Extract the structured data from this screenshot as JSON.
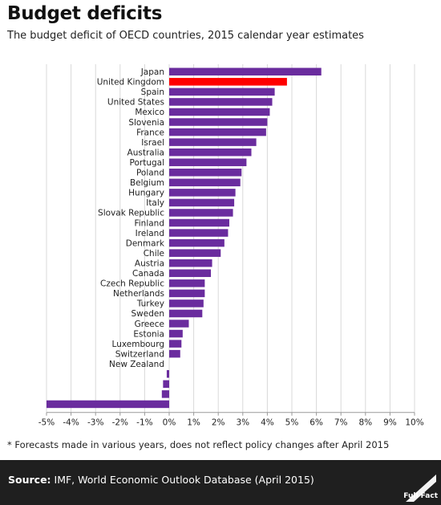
{
  "header": {
    "title": "Budget deficits",
    "subtitle": "The budget deficit of OECD countries, 2015 calendar year estimates"
  },
  "footnote": "* Forecasts made in various years, does not reflect policy changes after April 2015",
  "footer": {
    "source_label": "Source:",
    "source_text": " IMF, World Economic Outlook Database (April 2015)",
    "logo_text": "Full Fact"
  },
  "colors": {
    "bar": "#6a2c9e",
    "highlight": "#ff0000",
    "grid": "#d9d9d9",
    "footer_bg": "#1f1f1f"
  },
  "chart_data": {
    "type": "bar",
    "orientation": "horizontal",
    "categories": [
      "Japan",
      "United Kingdom",
      "Spain",
      "United States",
      "Mexico",
      "Slovenia",
      "France",
      "Israel",
      "Australia",
      "Portugal",
      "Poland",
      "Belgium",
      "Hungary",
      "Italy",
      "Slovak Republic",
      "Finland",
      "Ireland",
      "Denmark",
      "Chile",
      "Austria",
      "Canada",
      "Czech Republic",
      "Netherlands",
      "Turkey",
      "Sweden",
      "Greece",
      "Estonia",
      "Luxembourg",
      "Switzerland",
      "New Zealand",
      "",
      "",
      "",
      ""
    ],
    "values": [
      6.2,
      4.8,
      4.3,
      4.2,
      4.1,
      4.0,
      3.95,
      3.55,
      3.35,
      3.15,
      2.95,
      2.9,
      2.7,
      2.65,
      2.6,
      2.45,
      2.4,
      2.25,
      2.1,
      1.75,
      1.7,
      1.45,
      1.45,
      1.4,
      1.35,
      0.8,
      0.55,
      0.5,
      0.45,
      0.0,
      -0.1,
      -0.25,
      -0.3,
      -5.0
    ],
    "highlight_category": "United Kingdom",
    "xlim": [
      -5,
      10
    ],
    "xticks": [
      "-5%",
      "-4%",
      "-3%",
      "-2%",
      "-1%",
      "0%",
      "1%",
      "2%",
      "3%",
      "4%",
      "5%",
      "6%",
      "7%",
      "8%",
      "9%",
      "10%"
    ],
    "grid": true,
    "title": "Budget deficits",
    "xlabel": "",
    "ylabel": ""
  }
}
